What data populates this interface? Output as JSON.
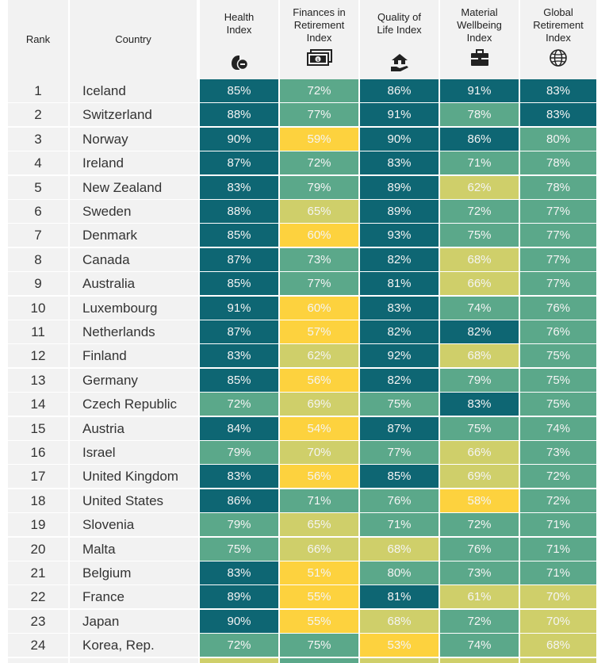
{
  "colors": {
    "dark_teal": "#0e6673",
    "green": "#5ba88a",
    "yellow_green": "#cfcf6a",
    "yellow": "#fdd23e",
    "header_bg": "#f2f2f2"
  },
  "table": {
    "rank_header": "Rank",
    "country_header": "Country",
    "columns": [
      {
        "key": "health",
        "label_lines": [
          "Health",
          "Index"
        ],
        "icon": "health-icon"
      },
      {
        "key": "finances",
        "label_lines": [
          "Finances in",
          "Retirement",
          "Index"
        ],
        "icon": "money-icon"
      },
      {
        "key": "qol",
        "label_lines": [
          "Quality of",
          "Life Index"
        ],
        "icon": "home-hand-icon"
      },
      {
        "key": "material",
        "label_lines": [
          "Material",
          "Wellbeing",
          "Index"
        ],
        "icon": "briefcase-icon"
      },
      {
        "key": "global",
        "label_lines": [
          "Global",
          "Retirement",
          "Index"
        ],
        "icon": "globe-icon"
      }
    ]
  },
  "chart_data": {
    "type": "table",
    "columns": [
      "Rank",
      "Country",
      "Health Index",
      "Finances in Retirement Index",
      "Quality of Life Index",
      "Material Wellbeing Index",
      "Global Retirement Index"
    ],
    "rows": [
      {
        "rank": "1",
        "country": "Iceland",
        "values": [
          "85%",
          "72%",
          "86%",
          "91%",
          "83%"
        ]
      },
      {
        "rank": "2",
        "country": "Switzerland",
        "values": [
          "88%",
          "77%",
          "91%",
          "78%",
          "83%"
        ]
      },
      {
        "rank": "3",
        "country": "Norway",
        "values": [
          "90%",
          "59%",
          "90%",
          "86%",
          "80%"
        ]
      },
      {
        "rank": "4",
        "country": "Ireland",
        "values": [
          "87%",
          "72%",
          "83%",
          "71%",
          "78%"
        ]
      },
      {
        "rank": "5",
        "country": "New Zealand",
        "values": [
          "83%",
          "79%",
          "89%",
          "62%",
          "78%"
        ]
      },
      {
        "rank": "6",
        "country": "Sweden",
        "values": [
          "88%",
          "65%",
          "89%",
          "72%",
          "77%"
        ]
      },
      {
        "rank": "7",
        "country": "Denmark",
        "values": [
          "85%",
          "60%",
          "93%",
          "75%",
          "77%"
        ]
      },
      {
        "rank": "8",
        "country": "Canada",
        "values": [
          "87%",
          "73%",
          "82%",
          "68%",
          "77%"
        ]
      },
      {
        "rank": "9",
        "country": "Australia",
        "values": [
          "85%",
          "77%",
          "81%",
          "66%",
          "77%"
        ]
      },
      {
        "rank": "10",
        "country": "Luxembourg",
        "values": [
          "91%",
          "60%",
          "83%",
          "74%",
          "76%"
        ]
      },
      {
        "rank": "11",
        "country": "Netherlands",
        "values": [
          "87%",
          "57%",
          "82%",
          "82%",
          "76%"
        ]
      },
      {
        "rank": "12",
        "country": "Finland",
        "values": [
          "83%",
          "62%",
          "92%",
          "68%",
          "75%"
        ]
      },
      {
        "rank": "13",
        "country": "Germany",
        "values": [
          "85%",
          "56%",
          "82%",
          "79%",
          "75%"
        ]
      },
      {
        "rank": "14",
        "country": "Czech Republic",
        "values": [
          "72%",
          "69%",
          "75%",
          "83%",
          "75%"
        ]
      },
      {
        "rank": "15",
        "country": "Austria",
        "values": [
          "84%",
          "54%",
          "87%",
          "75%",
          "74%"
        ]
      },
      {
        "rank": "16",
        "country": "Israel",
        "values": [
          "79%",
          "70%",
          "77%",
          "66%",
          "73%"
        ]
      },
      {
        "rank": "17",
        "country": "United Kingdom",
        "values": [
          "83%",
          "56%",
          "85%",
          "69%",
          "72%"
        ]
      },
      {
        "rank": "18",
        "country": "United States",
        "values": [
          "86%",
          "71%",
          "76%",
          "58%",
          "72%"
        ]
      },
      {
        "rank": "19",
        "country": "Slovenia",
        "values": [
          "79%",
          "65%",
          "71%",
          "72%",
          "71%"
        ]
      },
      {
        "rank": "20",
        "country": "Malta",
        "values": [
          "75%",
          "66%",
          "68%",
          "76%",
          "71%"
        ]
      },
      {
        "rank": "21",
        "country": "Belgium",
        "values": [
          "83%",
          "51%",
          "80%",
          "73%",
          "71%"
        ]
      },
      {
        "rank": "22",
        "country": "France",
        "values": [
          "89%",
          "55%",
          "81%",
          "61%",
          "70%"
        ]
      },
      {
        "rank": "23",
        "country": "Japan",
        "values": [
          "90%",
          "55%",
          "68%",
          "72%",
          "70%"
        ]
      },
      {
        "rank": "24",
        "country": "Korea, Rep.",
        "values": [
          "72%",
          "75%",
          "53%",
          "74%",
          "68%"
        ]
      }
    ],
    "cell_colors": [
      [
        "dark_teal",
        "green",
        "dark_teal",
        "dark_teal",
        "dark_teal"
      ],
      [
        "dark_teal",
        "green",
        "dark_teal",
        "green",
        "dark_teal"
      ],
      [
        "dark_teal",
        "yellow",
        "dark_teal",
        "dark_teal",
        "green"
      ],
      [
        "dark_teal",
        "green",
        "dark_teal",
        "green",
        "green"
      ],
      [
        "dark_teal",
        "green",
        "dark_teal",
        "yellow_green",
        "green"
      ],
      [
        "dark_teal",
        "yellow_green",
        "dark_teal",
        "green",
        "green"
      ],
      [
        "dark_teal",
        "yellow",
        "dark_teal",
        "green",
        "green"
      ],
      [
        "dark_teal",
        "green",
        "dark_teal",
        "yellow_green",
        "green"
      ],
      [
        "dark_teal",
        "green",
        "dark_teal",
        "yellow_green",
        "green"
      ],
      [
        "dark_teal",
        "yellow",
        "dark_teal",
        "green",
        "green"
      ],
      [
        "dark_teal",
        "yellow",
        "dark_teal",
        "dark_teal",
        "green"
      ],
      [
        "dark_teal",
        "yellow_green",
        "dark_teal",
        "yellow_green",
        "green"
      ],
      [
        "dark_teal",
        "yellow",
        "dark_teal",
        "green",
        "green"
      ],
      [
        "green",
        "yellow_green",
        "green",
        "dark_teal",
        "green"
      ],
      [
        "dark_teal",
        "yellow",
        "dark_teal",
        "green",
        "green"
      ],
      [
        "green",
        "yellow_green",
        "green",
        "yellow_green",
        "green"
      ],
      [
        "dark_teal",
        "yellow",
        "dark_teal",
        "yellow_green",
        "green"
      ],
      [
        "dark_teal",
        "green",
        "green",
        "yellow",
        "green"
      ],
      [
        "green",
        "yellow_green",
        "green",
        "green",
        "green"
      ],
      [
        "green",
        "yellow_green",
        "yellow_green",
        "green",
        "green"
      ],
      [
        "dark_teal",
        "yellow",
        "green",
        "green",
        "green"
      ],
      [
        "dark_teal",
        "yellow",
        "dark_teal",
        "yellow_green",
        "yellow_green"
      ],
      [
        "dark_teal",
        "yellow",
        "yellow_green",
        "green",
        "yellow_green"
      ],
      [
        "green",
        "green",
        "yellow",
        "green",
        "yellow_green"
      ]
    ]
  }
}
